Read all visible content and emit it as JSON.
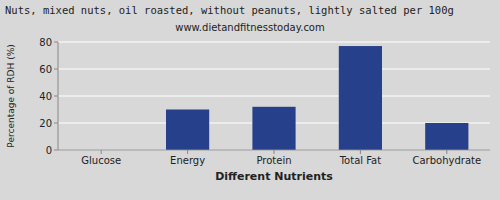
{
  "chart_data": {
    "type": "bar",
    "title": "Nuts, mixed nuts, oil roasted, without peanuts, lightly salted per 100g",
    "subtitle": "www.dietandfitnesstoday.com",
    "xlabel": "Different Nutrients",
    "ylabel": "Percentage of RDH (%)",
    "categories": [
      "Glucose",
      "Energy",
      "Protein",
      "Total Fat",
      "Carbohydrate"
    ],
    "values": [
      0,
      30,
      32,
      77,
      20
    ],
    "color": "#27408B",
    "ylim": [
      0,
      80
    ],
    "yticks": [
      0,
      20,
      40,
      60,
      80
    ],
    "grid": true
  }
}
